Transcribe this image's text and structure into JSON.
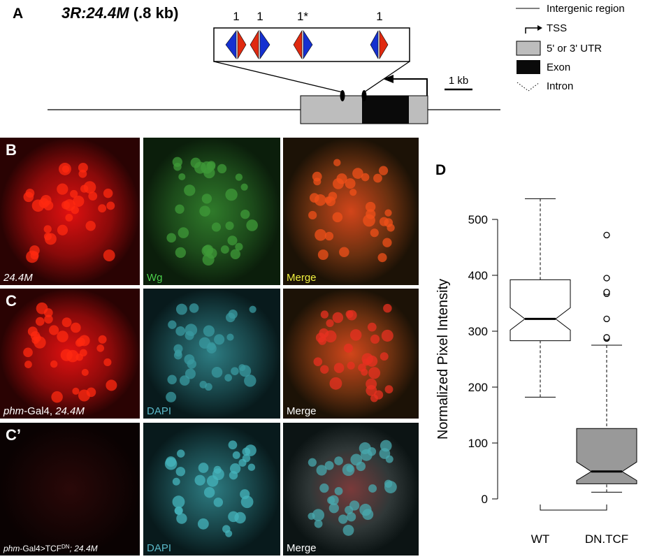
{
  "panel_a": {
    "letter": "A",
    "title": "3R:24.4M",
    "title_suffix": "(.8 kb)",
    "site_labels": [
      "1",
      "1",
      "1*",
      "1"
    ],
    "scale_label": "1 kb",
    "legend": [
      "Intergenic region",
      "TSS",
      "5' or 3' UTR",
      "Exon",
      "Intron"
    ]
  },
  "panels": [
    {
      "letter": "B",
      "images": [
        {
          "parts": [
            "24.4M"
          ]
        },
        {
          "parts": [
            "Wg"
          ]
        },
        {
          "parts": [
            "Merge"
          ]
        }
      ]
    },
    {
      "letter": "C",
      "images": [
        {
          "parts": [
            "phm",
            "-Gal4, ",
            "24.4M"
          ]
        },
        {
          "parts": [
            "DAPI"
          ]
        },
        {
          "parts": [
            "Merge"
          ]
        }
      ]
    },
    {
      "letter": "C’",
      "images": [
        {
          "parts": [
            "phm",
            "-Gal4>TCF",
            "DN",
            "; 24.4M"
          ]
        },
        {
          "parts": [
            "DAPI"
          ]
        },
        {
          "parts": [
            "Merge"
          ]
        }
      ]
    }
  ],
  "chart_data": {
    "type": "box",
    "panel": "D",
    "ylabel": "Normalized Pixel Intensity",
    "categories": [
      "WT",
      "DN.TCF"
    ],
    "boxes": [
      {
        "whisker_low": 182,
        "q1": 283,
        "notch_low": 302,
        "median": 322,
        "notch_high": 342,
        "q3": 392,
        "whisker_high": 537,
        "color": "#ffffff"
      },
      {
        "whisker_low": 12,
        "q1": 27,
        "notch_low": 33,
        "median": 49,
        "notch_high": 66,
        "q3": 126,
        "whisker_high": 275,
        "outliers": [
          287,
          289,
          322,
          367,
          370,
          395,
          472
        ],
        "color": "#999999"
      }
    ],
    "ylim": [
      -20,
      545
    ],
    "yticks": [
      0,
      100,
      200,
      300,
      400,
      500
    ]
  }
}
